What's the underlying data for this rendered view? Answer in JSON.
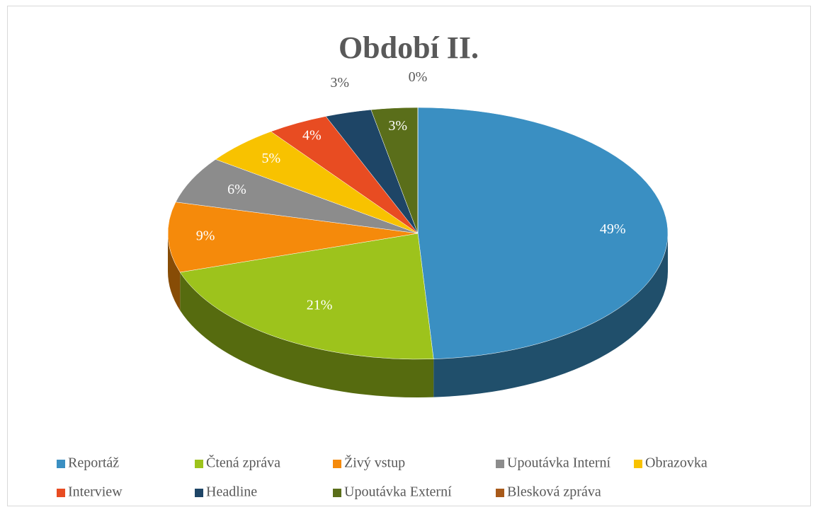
{
  "chart_data": {
    "type": "pie",
    "title": "Období II.",
    "categories": [
      "Reportáž",
      "Čtená zpráva",
      "Živý vstup",
      "Upoutávka Interní",
      "Obrazovka",
      "Interview",
      "Headline",
      "Upoutávka Externí",
      "Blesková zpráva"
    ],
    "values": [
      49,
      21,
      9,
      6,
      5,
      4,
      3,
      3,
      0
    ],
    "value_labels": [
      "49%",
      "21%",
      "9%",
      "6%",
      "5%",
      "4%",
      "3%",
      "3%",
      "0%"
    ],
    "colors": [
      "#3a8fc2",
      "#9dc31c",
      "#f58a0b",
      "#8c8c8c",
      "#f8c200",
      "#e84c22",
      "#1e4566",
      "#5a6e1a",
      "#a85a1a"
    ],
    "legend": "bottom"
  }
}
